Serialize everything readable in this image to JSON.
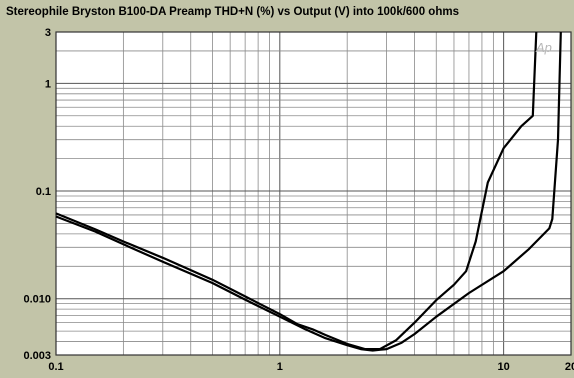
{
  "chart_data": {
    "type": "line",
    "title": "Stereophile  Bryston B100-DA  Preamp THD+N (%) vs Output (V) into 100k/600 ohms",
    "xlabel": "",
    "ylabel": "",
    "xscale": "log",
    "yscale": "log",
    "xlim": [
      0.1,
      20
    ],
    "ylim": [
      0.003,
      3
    ],
    "grid": true,
    "x_ticks": [
      {
        "value": 0.1,
        "label": "0.1"
      },
      {
        "value": 1,
        "label": "1"
      },
      {
        "value": 10,
        "label": "10"
      },
      {
        "value": 20,
        "label": "20"
      }
    ],
    "y_ticks": [
      {
        "value": 3,
        "label": "3"
      },
      {
        "value": 1,
        "label": "1"
      },
      {
        "value": 0.1,
        "label": "0.1"
      },
      {
        "value": 0.01,
        "label": "0.010"
      },
      {
        "value": 0.003,
        "label": "0.003"
      }
    ],
    "watermark": "Ap",
    "series": [
      {
        "x": [
          0.1,
          0.15,
          0.2,
          0.3,
          0.5,
          0.7,
          1.0,
          1.2,
          1.4,
          1.6,
          2.0,
          2.4,
          2.8,
          3.3,
          4.0,
          5.0,
          6.0,
          6.8,
          7.5,
          8.5,
          10.0,
          12.0,
          13.5,
          14.0
        ],
        "y": [
          0.062,
          0.044,
          0.034,
          0.024,
          0.015,
          0.0105,
          0.0072,
          0.0058,
          0.0052,
          0.0046,
          0.0038,
          0.0034,
          0.0034,
          0.0041,
          0.006,
          0.0097,
          0.0135,
          0.018,
          0.034,
          0.12,
          0.25,
          0.4,
          0.5,
          3.0
        ]
      },
      {
        "x": [
          0.1,
          0.15,
          0.2,
          0.3,
          0.5,
          0.7,
          1.0,
          1.3,
          1.6,
          2.0,
          2.3,
          2.6,
          3.0,
          3.5,
          4.0,
          5.0,
          7.0,
          10.0,
          13.0,
          16.0,
          16.5,
          17.5,
          18.0
        ],
        "y": [
          0.058,
          0.042,
          0.032,
          0.022,
          0.014,
          0.0098,
          0.0068,
          0.0052,
          0.0043,
          0.0037,
          0.0034,
          0.0033,
          0.0034,
          0.0039,
          0.0047,
          0.0068,
          0.0113,
          0.018,
          0.029,
          0.045,
          0.055,
          0.3,
          3.0
        ]
      }
    ]
  }
}
